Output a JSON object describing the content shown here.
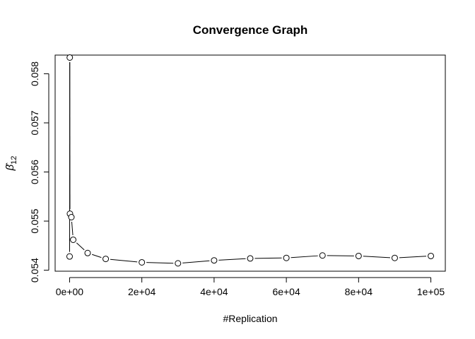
{
  "chart_data": {
    "type": "line",
    "title": "Convergence Graph",
    "xlabel": "#Replication",
    "ylabel_symbol": "β̂",
    "ylabel_subscript": "12",
    "xlim": [
      -4000,
      104000
    ],
    "ylim": [
      0.05398,
      0.05838
    ],
    "x_ticks": [
      0,
      20000,
      40000,
      60000,
      80000,
      100000
    ],
    "x_tick_labels": [
      "0e+00",
      "2e+04",
      "4e+04",
      "6e+04",
      "8e+04",
      "1e+05"
    ],
    "y_ticks": [
      0.054,
      0.055,
      0.056,
      0.057,
      0.058
    ],
    "y_tick_labels": [
      "0.054",
      "0.055",
      "0.056",
      "0.057",
      "0.058"
    ],
    "grid": false,
    "line_color": "#000000",
    "points": [
      {
        "x": 10,
        "y": 0.05428
      },
      {
        "x": 50,
        "y": 0.05833
      },
      {
        "x": 100,
        "y": 0.05515
      },
      {
        "x": 500,
        "y": 0.05508
      },
      {
        "x": 1000,
        "y": 0.05462
      },
      {
        "x": 5000,
        "y": 0.05435
      },
      {
        "x": 10000,
        "y": 0.05423
      },
      {
        "x": 20000,
        "y": 0.05416
      },
      {
        "x": 30000,
        "y": 0.05414
      },
      {
        "x": 40000,
        "y": 0.0542
      },
      {
        "x": 50000,
        "y": 0.05424
      },
      {
        "x": 60000,
        "y": 0.05425
      },
      {
        "x": 70000,
        "y": 0.0543
      },
      {
        "x": 80000,
        "y": 0.05429
      },
      {
        "x": 90000,
        "y": 0.05425
      },
      {
        "x": 100000,
        "y": 0.05429
      }
    ]
  }
}
